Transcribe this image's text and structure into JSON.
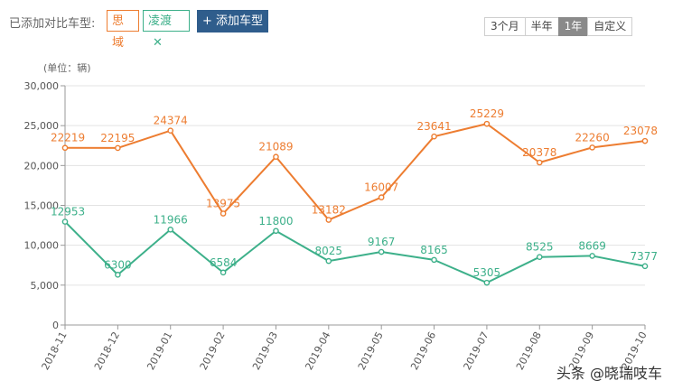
{
  "toolbar": {
    "added_label": "已添加对比车型:",
    "tags": [
      {
        "label": "思域",
        "color": "#ed7d31"
      },
      {
        "label": "凌渡",
        "color": "#3db08a",
        "close": "✕"
      }
    ],
    "add_button": "+ 添加车型",
    "ranges": [
      "3个月",
      "半年",
      "1年",
      "自定义"
    ],
    "active_range": "1年"
  },
  "watermark": "头条 @晓瑞吱车",
  "chart_data": {
    "type": "line",
    "ylabel": "(单位：辆)",
    "ylim": [
      0,
      30000
    ],
    "yticks": [
      0,
      5000,
      10000,
      15000,
      20000,
      25000,
      30000
    ],
    "ytick_labels": [
      "0",
      "5,000",
      "10,000",
      "15,000",
      "20,000",
      "25,000",
      "30,000"
    ],
    "categories": [
      "2018-11",
      "2018-12",
      "2019-01",
      "2019-02",
      "2019-03",
      "2019-04",
      "2019-05",
      "2019-06",
      "2019-07",
      "2019-08",
      "2019-09",
      "2019-10"
    ],
    "series": [
      {
        "name": "思域",
        "color": "#ed7d31",
        "values": [
          22219,
          22195,
          24374,
          13975,
          21089,
          13182,
          16007,
          23641,
          25229,
          20378,
          22260,
          23078
        ]
      },
      {
        "name": "凌渡",
        "color": "#3db08a",
        "values": [
          12953,
          6300,
          11966,
          6584,
          11800,
          8025,
          9167,
          8165,
          5305,
          8525,
          8669,
          7377
        ]
      }
    ]
  }
}
